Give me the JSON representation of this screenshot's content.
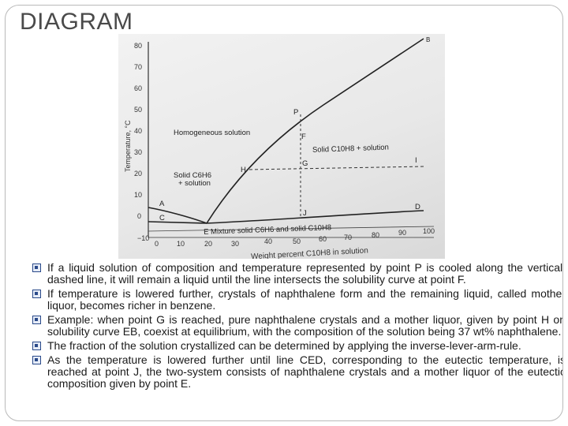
{
  "slide": {
    "title": "DIAGRAM"
  },
  "figure": {
    "y_axis_label": "Temperature, °C",
    "x_axis_label": "Weight percent C10H8 in solution",
    "x_ticks": [
      "−10",
      "0",
      "10",
      "20",
      "30",
      "40",
      "50",
      "60",
      "70",
      "80",
      "90",
      "100"
    ],
    "y_ticks": [
      "80",
      "70",
      "60",
      "50",
      "40",
      "30",
      "20",
      "10",
      "0"
    ],
    "regions": {
      "homogeneous": "Homogeneous solution",
      "solid_naph_solution": "Solid C10H8 + solution",
      "solid_benz_solution_1": "Solid C6H6",
      "solid_benz_solution_2": "+ solution",
      "mixture": "E  Mixture solid C6H6 and solid C10H8"
    },
    "points": {
      "P": "P",
      "F": "F",
      "H": "H",
      "G": "G",
      "I": "I",
      "J": "J",
      "A": "A",
      "C": "C",
      "D": "D",
      "B": "B"
    }
  },
  "bullets": [
    "If a liquid solution of composition and temperature represented by point P is cooled along the vertical, dashed line, it will remain a liquid until the line intersects the solubility curve at point F.",
    "If temperature is lowered further, crystals of naphthalene form and the remaining liquid, called mother liquor, becomes richer in benzene.",
    "Example: when point G is reached, pure naphthalene crystals and a mother liquor, given by point H on solubility curve EB, coexist at equilibrium, with the composition of the solution being 37 wt% naphthalene.",
    "The fraction of the solution crystallized can be determined by applying the inverse-lever-arm-rule.",
    "As the temperature is lowered further until line CED, corresponding to the eutectic temperature, is reached at point J, the two-system consists of naphthalene crystals and a mother liquor of the eutectic composition given by point E."
  ]
}
